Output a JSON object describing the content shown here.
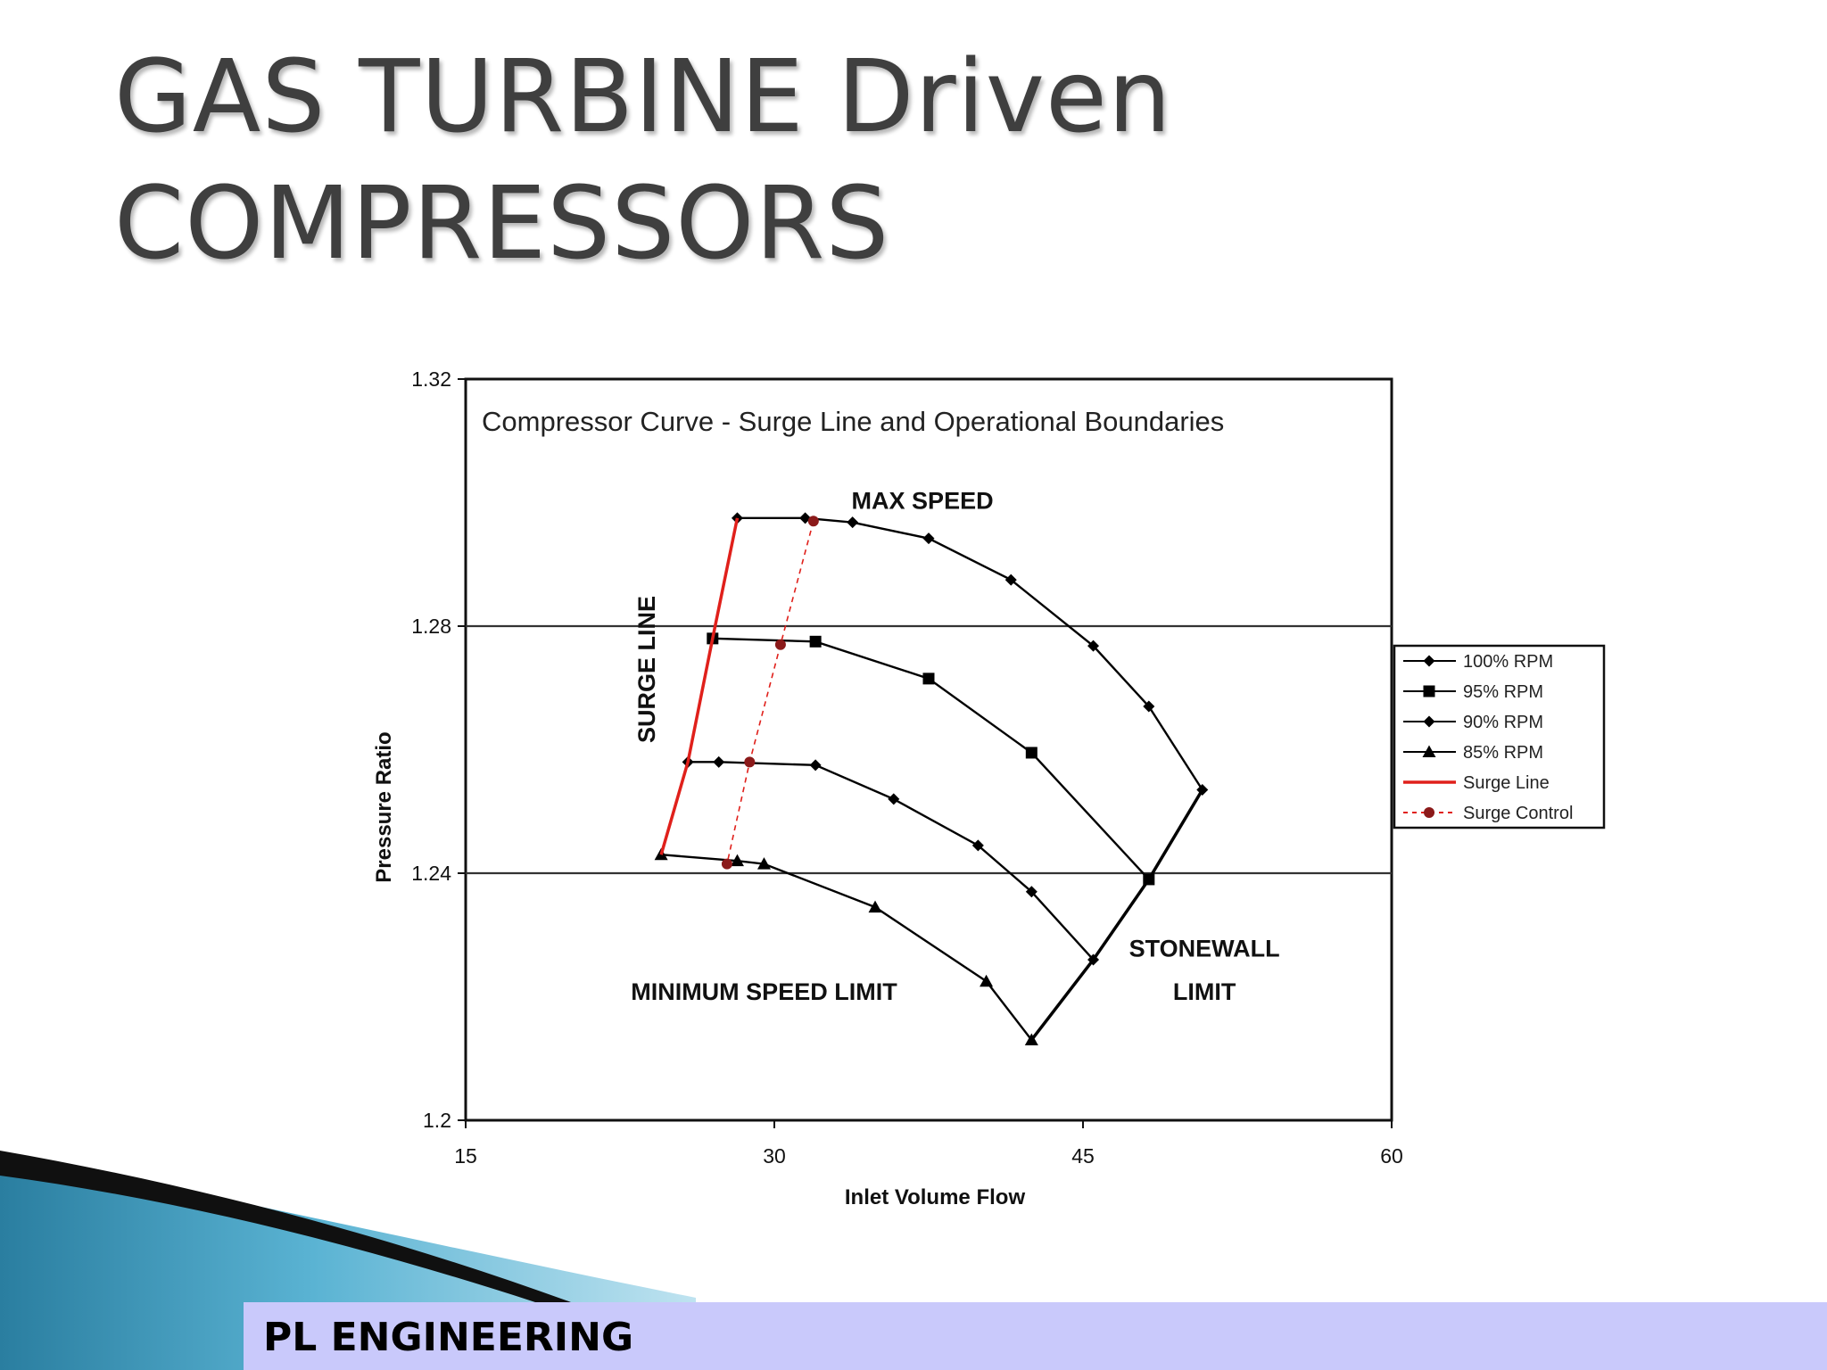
{
  "slide": {
    "title_line1": "GAS TURBINE Driven",
    "title_line2": "COMPRESSORS",
    "footer": "PL ENGINEERING",
    "footer_bg": "#c9c9fb"
  },
  "chart_data": {
    "type": "line",
    "title": "Compressor Curve - Surge Line and Operational Boundaries",
    "xlabel": "Inlet Volume Flow",
    "ylabel": "Pressure Ratio",
    "xlim": [
      15,
      60
    ],
    "ylim": [
      1.2,
      1.32
    ],
    "xticks": [
      "15",
      "30",
      "45",
      "60"
    ],
    "yticks": [
      "1.2",
      "1.24",
      "1.28",
      "1.32"
    ],
    "grid": "horizontal at 1.24 and 1.28",
    "legend_position": "right",
    "series": [
      {
        "name": "100% RPM",
        "marker": "diamond",
        "color": "#000000",
        "x": [
          28.2,
          31.5,
          33.8,
          37.5,
          41.5,
          45.5,
          48.2,
          50.8
        ],
        "y": [
          1.2975,
          1.2975,
          1.2968,
          1.2942,
          1.2875,
          1.2768,
          1.267,
          1.2535
        ]
      },
      {
        "name": "95% RPM",
        "marker": "square",
        "color": "#000000",
        "x": [
          27.0,
          32.0,
          37.5,
          42.5,
          48.2
        ],
        "y": [
          1.278,
          1.2775,
          1.2715,
          1.2595,
          1.239
        ]
      },
      {
        "name": "90% RPM",
        "marker": "diamond",
        "color": "#000000",
        "x": [
          25.8,
          27.3,
          32.0,
          35.8,
          39.9,
          42.5,
          45.5
        ],
        "y": [
          1.258,
          1.258,
          1.2575,
          1.252,
          1.2445,
          1.237,
          1.226
        ]
      },
      {
        "name": "85% RPM",
        "marker": "triangle",
        "color": "#000000",
        "x": [
          24.5,
          28.2,
          29.5,
          34.9,
          40.3,
          42.5
        ],
        "y": [
          1.243,
          1.242,
          1.2415,
          1.2345,
          1.2225,
          1.213
        ]
      },
      {
        "name": "Surge Line",
        "marker": "none",
        "color": "#e0201b",
        "x": [
          28.2,
          27.0,
          25.8,
          24.5
        ],
        "y": [
          1.2975,
          1.278,
          1.258,
          1.243
        ]
      },
      {
        "name": "Surge Control",
        "marker": "circle",
        "color": "#8b1a1a",
        "dashed": true,
        "x": [
          31.9,
          30.3,
          28.8,
          27.7
        ],
        "y": [
          1.297,
          1.277,
          1.258,
          1.2415
        ]
      }
    ],
    "boundary_lines": [
      {
        "name": "stonewall",
        "x": [
          50.8,
          48.2,
          45.5,
          42.5
        ],
        "y": [
          1.2535,
          1.239,
          1.226,
          1.213
        ]
      }
    ],
    "annotations": [
      {
        "text": "MAX SPEED",
        "x": 37.2,
        "y": 1.299
      },
      {
        "text": "SURGE LINE",
        "x": 24.2,
        "y": 1.273,
        "rotated": true
      },
      {
        "text": "STONEWALL",
        "x": 50.9,
        "y": 1.2265
      },
      {
        "text": "LIMIT",
        "x": 50.9,
        "y": 1.2195
      },
      {
        "text": "MINIMUM SPEED LIMIT",
        "x": 29.5,
        "y": 1.2195
      }
    ]
  }
}
